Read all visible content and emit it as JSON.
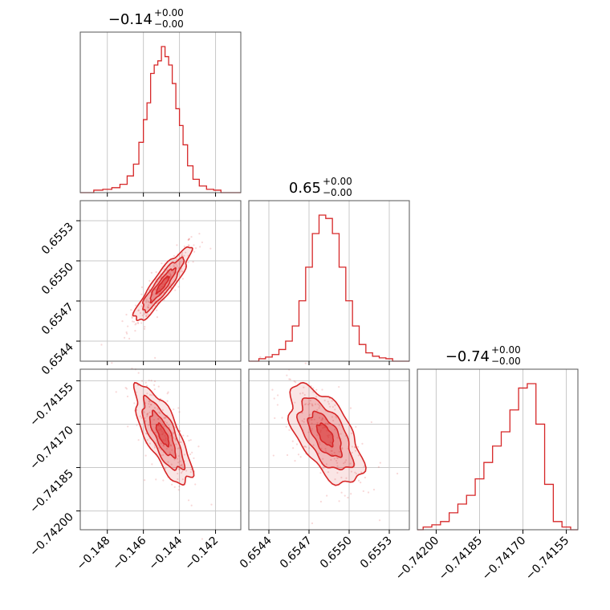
{
  "chart_data": {
    "type": "corner",
    "color": "#d62728",
    "grid": true,
    "parameters": [
      {
        "title_value": "−0.14",
        "title_sup": "+0.00",
        "title_sub": "−0.00",
        "xlim": [
          -0.1495,
          -0.1406
        ],
        "ticks": [
          -0.148,
          -0.146,
          -0.144,
          -0.142
        ],
        "tick_labels": [
          "−0.148",
          "−0.146",
          "−0.144",
          "−0.142"
        ],
        "histogram": {
          "x": [
            -0.1485,
            -0.148,
            -0.1475,
            -0.1471,
            -0.1467,
            -0.1464,
            -0.1461,
            -0.1459,
            -0.1457,
            -0.1455,
            -0.1453,
            -0.1451,
            -0.1449,
            -0.1447,
            -0.1445,
            -0.1443,
            -0.1441,
            -0.1439,
            -0.1437,
            -0.1434,
            -0.1431,
            -0.1427,
            -0.1423,
            -0.1419
          ],
          "counts": [
            1,
            2,
            4,
            8,
            18,
            32,
            58,
            85,
            105,
            140,
            150,
            155,
            172,
            160,
            150,
            128,
            98,
            78,
            55,
            30,
            14,
            6,
            2,
            1
          ]
        }
      },
      {
        "title_value": "0.65",
        "title_sup": "+0.00",
        "title_sub": "−0.00",
        "xlim": [
          0.65425,
          0.65545
        ],
        "ticks": [
          0.6544,
          0.6547,
          0.655,
          0.6553
        ],
        "tick_labels": [
          "0.6544",
          "0.6547",
          "0.6550",
          "0.6553"
        ],
        "histogram": {
          "x": [
            0.65435,
            0.6544,
            0.65445,
            0.6545,
            0.65455,
            0.6546,
            0.65465,
            0.6547,
            0.65475,
            0.6548,
            0.65485,
            0.6549,
            0.65495,
            0.655,
            0.65505,
            0.6551,
            0.65515,
            0.6552,
            0.65525,
            0.6553
          ],
          "counts": [
            1,
            3,
            6,
            12,
            22,
            40,
            70,
            110,
            150,
            172,
            168,
            150,
            110,
            70,
            40,
            18,
            8,
            4,
            2,
            1
          ]
        }
      },
      {
        "title_value": "−0.74",
        "title_sup": "+0.00",
        "title_sub": "−0.00",
        "xlim": [
          -0.742065,
          -0.74151
        ],
        "ticks": [
          -0.742,
          -0.74185,
          -0.7417,
          -0.74155
        ],
        "tick_labels": [
          "−0.74200",
          "−0.74185",
          "−0.74170",
          "−0.74155"
        ],
        "histogram": {
          "x": [
            -0.74203,
            -0.742,
            -0.74197,
            -0.74194,
            -0.74191,
            -0.74188,
            -0.74185,
            -0.74182,
            -0.74179,
            -0.74176,
            -0.74173,
            -0.7417,
            -0.74167,
            -0.74164,
            -0.74161,
            -0.74158,
            -0.74155
          ],
          "counts": [
            1,
            3,
            6,
            14,
            22,
            30,
            45,
            60,
            75,
            88,
            108,
            128,
            132,
            95,
            40,
            6,
            1
          ]
        }
      }
    ],
    "pairs": [
      {
        "row": 1,
        "col": 0,
        "rho": 0.9,
        "points": 220
      },
      {
        "row": 2,
        "col": 0,
        "rho": -0.75,
        "points": 220
      },
      {
        "row": 2,
        "col": 1,
        "rho": -0.6,
        "points": 220
      }
    ]
  }
}
